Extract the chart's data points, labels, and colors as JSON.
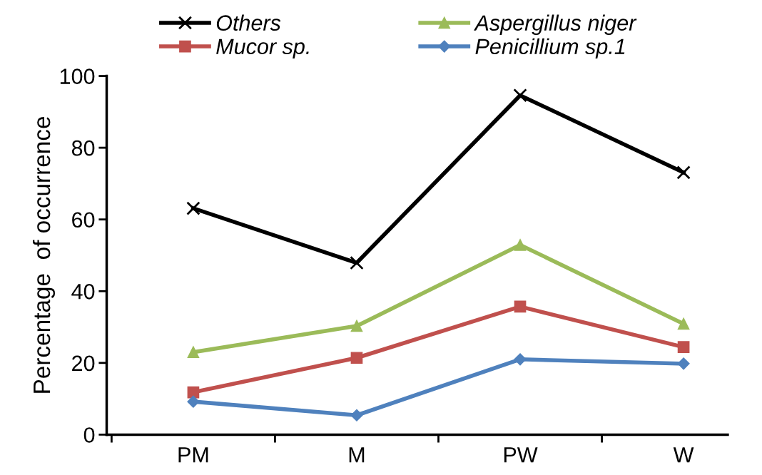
{
  "chart_data": {
    "type": "line",
    "ylabel": "Percentage  of occurrence",
    "categories": [
      "PM",
      "M",
      "PW",
      "W"
    ],
    "series": [
      {
        "name": "Others",
        "color": "#000000",
        "marker": "cross",
        "values": [
          63.1,
          47.9,
          94.6,
          73.1
        ]
      },
      {
        "name": "Mucor sp.",
        "color": "#c0504d",
        "marker": "square",
        "values": [
          11.8,
          21.4,
          35.7,
          24.4
        ]
      },
      {
        "name": "Aspergillus niger",
        "color": "#9bbb59",
        "marker": "triangle",
        "values": [
          23,
          30.3,
          52.9,
          30.9
        ]
      },
      {
        "name": "Penicillium sp.1",
        "color": "#4f81bd",
        "marker": "diamond",
        "values": [
          9.2,
          5.4,
          21,
          19.8
        ]
      }
    ],
    "ylim": [
      0,
      100
    ],
    "yticks": [
      0,
      20,
      40,
      60,
      80,
      100
    ],
    "grid": false,
    "legend": "top"
  }
}
